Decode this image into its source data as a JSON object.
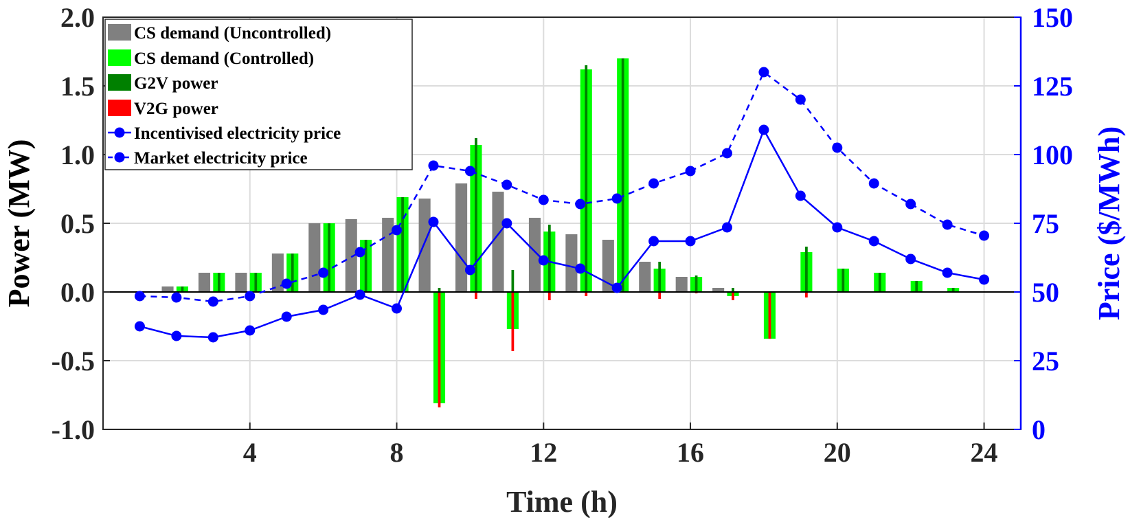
{
  "chart_data": {
    "type": "bar",
    "xlabel": "Time (h)",
    "ylabel": "Power (MW)",
    "ylabel_right": "Price ($/MWh)",
    "xlim": [
      0,
      25
    ],
    "ylim": [
      -1.0,
      2.0
    ],
    "ylim_right": [
      0,
      150
    ],
    "x_ticks": [
      4,
      8,
      12,
      16,
      20,
      24
    ],
    "y_ticks": [
      "-1.0",
      "-0.5",
      "0.0",
      "0.5",
      "1.0",
      "1.5",
      "2.0"
    ],
    "y_ticks_right": [
      "0",
      "25",
      "50",
      "75",
      "100",
      "125",
      "150"
    ],
    "grid": true,
    "legend_position": "top-left",
    "hours": [
      1,
      2,
      3,
      4,
      5,
      6,
      7,
      8,
      9,
      10,
      11,
      12,
      13,
      14,
      15,
      16,
      17,
      18,
      19,
      20,
      21,
      22,
      23,
      24
    ],
    "series": [
      {
        "name": "CS demand (Uncontrolled)",
        "kind": "bar",
        "color": "#808080",
        "values": [
          0,
          0.04,
          0.14,
          0.14,
          0.28,
          0.5,
          0.53,
          0.54,
          0.68,
          0.79,
          0.73,
          0.54,
          0.42,
          0.38,
          0.22,
          0.11,
          0.03,
          0,
          0,
          0,
          0,
          0,
          0,
          0
        ]
      },
      {
        "name": "CS demand (Controlled)",
        "kind": "bar",
        "color": "#00ff00",
        "values": [
          0,
          0.04,
          0.14,
          0.14,
          0.28,
          0.5,
          0.38,
          0.69,
          -0.81,
          1.07,
          -0.27,
          0.44,
          1.62,
          1.7,
          0.17,
          0.11,
          -0.03,
          -0.34,
          0.29,
          0.17,
          0.14,
          0.08,
          0.03,
          0
        ]
      },
      {
        "name": "G2V power",
        "kind": "bar",
        "color": "#008000",
        "values": [
          0,
          0.04,
          0.14,
          0.14,
          0.28,
          0.5,
          0.38,
          0.69,
          0.03,
          1.12,
          0.16,
          0.49,
          1.65,
          1.7,
          0.22,
          0.12,
          0.03,
          0,
          0.33,
          0.17,
          0.14,
          0.08,
          0.03,
          0
        ]
      },
      {
        "name": "V2G power",
        "kind": "bar",
        "color": "#ff0000",
        "values": [
          0,
          0,
          0,
          0,
          0,
          0,
          0,
          0,
          -0.84,
          -0.05,
          -0.43,
          -0.06,
          -0.03,
          0,
          -0.05,
          -0.01,
          -0.06,
          -0.34,
          -0.04,
          0,
          0,
          0,
          0,
          0
        ]
      },
      {
        "name": "Incentivised electricity price",
        "kind": "line",
        "axis": "right",
        "color": "#0000ff",
        "style": "solid",
        "values": [
          37.5,
          34,
          33.5,
          36,
          41,
          43.5,
          49,
          44,
          75.5,
          58,
          75,
          61.5,
          58.5,
          51.5,
          68.5,
          68.5,
          73.5,
          109,
          85,
          73.5,
          68.5,
          62,
          57,
          54.5
        ]
      },
      {
        "name": "Market electricity price",
        "kind": "line",
        "axis": "right",
        "color": "#0000ff",
        "style": "dashed",
        "values": [
          48.5,
          48,
          46.5,
          48.5,
          53,
          57,
          64.5,
          72.5,
          96,
          94,
          89,
          83.5,
          82,
          84,
          89.5,
          94,
          100.5,
          130,
          120,
          102.5,
          89.5,
          82,
          74.5,
          70.5
        ]
      }
    ]
  }
}
